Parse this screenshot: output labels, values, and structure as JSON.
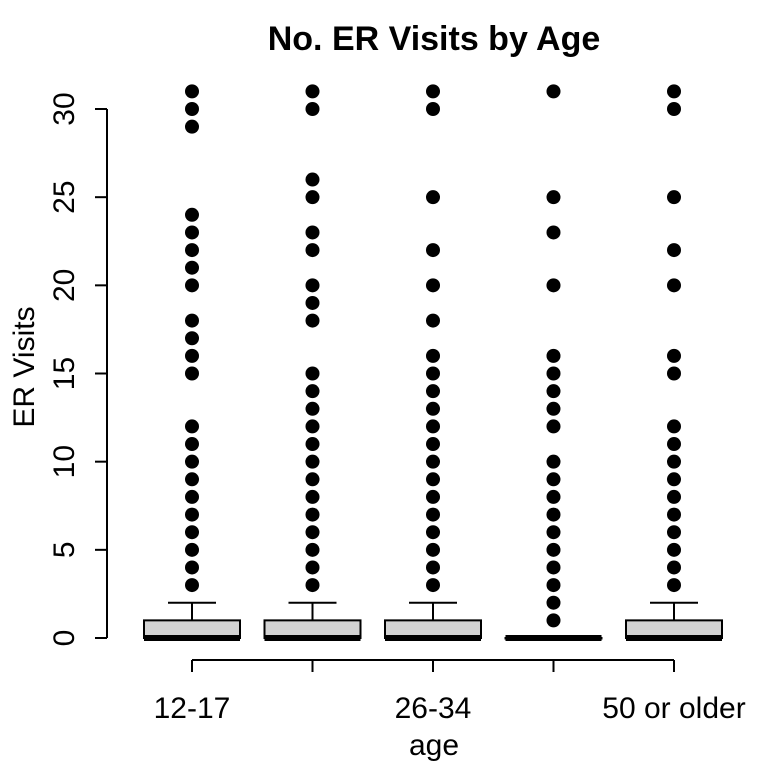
{
  "chart_data": {
    "type": "boxplot",
    "title": "No. ER Visits by Age",
    "xlabel": "age",
    "ylabel": "ER Visits",
    "ylim": [
      -1.2,
      32
    ],
    "yticks": [
      0,
      5,
      10,
      15,
      20,
      25,
      30
    ],
    "grid": false,
    "categories": [
      "12-17",
      "",
      "26-34",
      "",
      "50 or older"
    ],
    "box_fill": "#d3d3d3",
    "boxes": [
      {
        "q1": 0,
        "median": 0,
        "q3": 1,
        "whisker_low": 0,
        "whisker_high": 2,
        "outliers": [
          3,
          4,
          5,
          6,
          7,
          8,
          9,
          10,
          11,
          12,
          15,
          16,
          17,
          18,
          20,
          21,
          22,
          23,
          24,
          29,
          30,
          31
        ]
      },
      {
        "q1": 0,
        "median": 0,
        "q3": 1,
        "whisker_low": 0,
        "whisker_high": 2,
        "outliers": [
          3,
          4,
          5,
          6,
          7,
          8,
          9,
          10,
          11,
          12,
          13,
          14,
          15,
          18,
          19,
          20,
          22,
          23,
          25,
          26,
          30,
          31
        ]
      },
      {
        "q1": 0,
        "median": 0,
        "q3": 1,
        "whisker_low": 0,
        "whisker_high": 2,
        "outliers": [
          3,
          4,
          5,
          6,
          7,
          8,
          9,
          10,
          11,
          12,
          13,
          14,
          15,
          16,
          18,
          20,
          22,
          25,
          30,
          31
        ]
      },
      {
        "q1": 0,
        "median": 0,
        "q3": 0,
        "whisker_low": 0,
        "whisker_high": 0,
        "outliers": [
          1,
          2,
          3,
          4,
          5,
          6,
          7,
          8,
          9,
          10,
          12,
          13,
          14,
          15,
          16,
          20,
          23,
          25,
          31
        ]
      },
      {
        "q1": 0,
        "median": 0,
        "q3": 1,
        "whisker_low": 0,
        "whisker_high": 2,
        "outliers": [
          3,
          4,
          5,
          6,
          7,
          8,
          9,
          10,
          11,
          12,
          15,
          16,
          20,
          22,
          25,
          30,
          31
        ]
      }
    ]
  }
}
